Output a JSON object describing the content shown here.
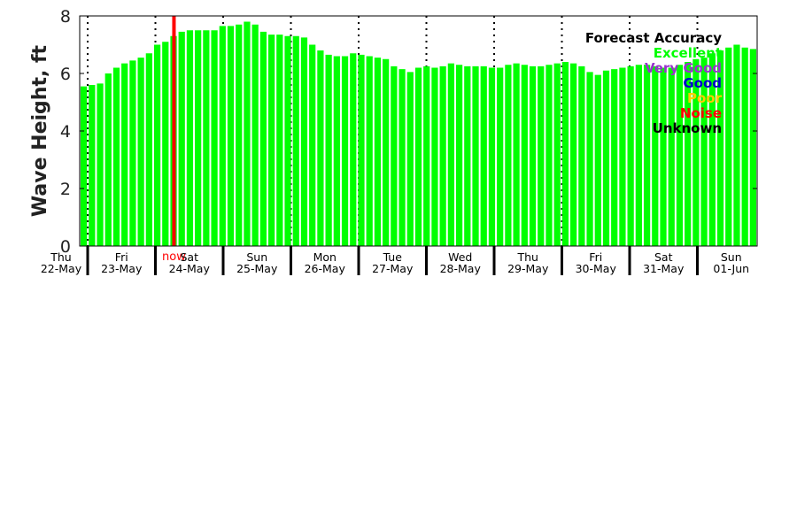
{
  "chart_data": {
    "type": "bar",
    "ylabel": "Wave Height, ft",
    "ylim": [
      0,
      8
    ],
    "yticks": [
      0,
      2,
      4,
      6,
      8
    ],
    "bar_color": "#00ff00",
    "now_marker": {
      "label": "now",
      "index": 11,
      "color": "#ff0000"
    },
    "days": [
      {
        "dow": "Thu",
        "date": "22-May"
      },
      {
        "dow": "Fri",
        "date": "23-May"
      },
      {
        "dow": "Sat",
        "date": "24-May"
      },
      {
        "dow": "Sun",
        "date": "25-May"
      },
      {
        "dow": "Mon",
        "date": "26-May"
      },
      {
        "dow": "Tue",
        "date": "27-May"
      },
      {
        "dow": "Wed",
        "date": "28-May"
      },
      {
        "dow": "Thu",
        "date": "29-May"
      },
      {
        "dow": "Fri",
        "date": "30-May"
      },
      {
        "dow": "Sat",
        "date": "31-May"
      },
      {
        "dow": "Sun",
        "date": "01-Jun"
      }
    ],
    "values": [
      5.55,
      5.6,
      5.65,
      6.0,
      6.2,
      6.35,
      6.45,
      6.55,
      6.7,
      7.0,
      7.1,
      7.3,
      7.45,
      7.5,
      7.5,
      7.5,
      7.5,
      7.65,
      7.65,
      7.7,
      7.8,
      7.7,
      7.45,
      7.35,
      7.35,
      7.3,
      7.3,
      7.25,
      7.0,
      6.8,
      6.65,
      6.6,
      6.6,
      6.7,
      6.65,
      6.6,
      6.55,
      6.5,
      6.25,
      6.15,
      6.05,
      6.2,
      6.25,
      6.2,
      6.25,
      6.35,
      6.3,
      6.25,
      6.25,
      6.25,
      6.2,
      6.2,
      6.3,
      6.35,
      6.3,
      6.25,
      6.25,
      6.3,
      6.35,
      6.4,
      6.35,
      6.25,
      6.05,
      5.95,
      6.1,
      6.15,
      6.2,
      6.25,
      6.3,
      6.3,
      6.25,
      6.2,
      6.2,
      6.3,
      6.4,
      6.5,
      6.55,
      6.7,
      6.8,
      6.9,
      7.0,
      6.9,
      6.85
    ],
    "legend": {
      "title": "Forecast Accuracy",
      "items": [
        {
          "label": "Excellent",
          "color": "#00ff00"
        },
        {
          "label": "Very Good",
          "color": "#9933cc"
        },
        {
          "label": "Good",
          "color": "#0000cc"
        },
        {
          "label": "Poor",
          "color": "#ffcc00"
        },
        {
          "label": "Noise",
          "color": "#ff0000"
        },
        {
          "label": "Unknown",
          "color": "#000000"
        }
      ],
      "placement": "top-right"
    }
  }
}
